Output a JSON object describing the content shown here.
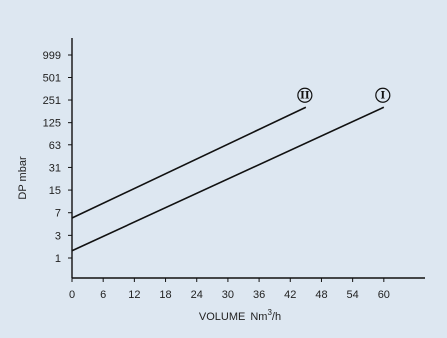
{
  "colors": {
    "panel": "#dde7f1",
    "line": "#111111",
    "text": "#222222"
  },
  "chart_data": {
    "type": "line",
    "title": "",
    "xlabel": "VOLUME",
    "xlabel_unit_prefix": "Nm",
    "xlabel_unit_sup": "3",
    "xlabel_unit_suffix": "/h",
    "ylabel": "DP mbar",
    "y_scale": "log2",
    "xlim": [
      0,
      66
    ],
    "x_ticks": [
      0,
      6,
      12,
      18,
      24,
      30,
      36,
      42,
      48,
      54,
      60
    ],
    "y_ticks": [
      1,
      3,
      7,
      15,
      31,
      63,
      125,
      251,
      501,
      999
    ],
    "grid": false,
    "series": [
      {
        "name": "I",
        "x": [
          0,
          60
        ],
        "y": [
          1.5,
          201
        ]
      },
      {
        "name": "II",
        "x": [
          0,
          45
        ],
        "y": [
          5.8,
          201
        ]
      }
    ]
  }
}
